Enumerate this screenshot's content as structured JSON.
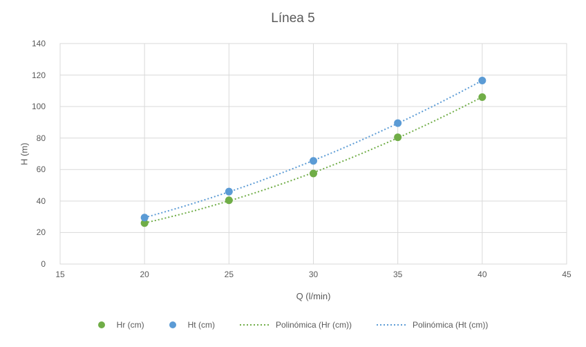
{
  "chart": {
    "title": "Línea 5"
  },
  "chart_data": {
    "type": "scatter",
    "title": "Línea 5",
    "xlabel": "Q (l/min)",
    "ylabel": "H (m)",
    "xlim": [
      15,
      45
    ],
    "ylim": [
      0,
      140
    ],
    "x_ticks": [
      15,
      20,
      25,
      30,
      35,
      40,
      45
    ],
    "y_ticks": [
      0,
      20,
      40,
      60,
      80,
      100,
      120,
      140
    ],
    "grid": true,
    "legend_position": "bottom",
    "x": [
      20,
      25,
      30,
      35,
      40
    ],
    "series": [
      {
        "name": "Hr (cm)",
        "values": [
          26,
          40.5,
          57.5,
          80.5,
          106
        ],
        "color": "#70AD47",
        "marker": "circle",
        "trendline": "polynomial-dotted"
      },
      {
        "name": "Ht (cm)",
        "values": [
          29.5,
          46,
          65.5,
          89.5,
          116.5
        ],
        "color": "#5B9BD5",
        "marker": "circle",
        "trendline": "polynomial-dotted"
      }
    ],
    "trendlines": [
      {
        "name": "Polinómica (Hr (cm))",
        "series": "Hr (cm)",
        "color": "#70AD47",
        "style": "dotted"
      },
      {
        "name": "Polinómica (Ht (cm))",
        "series": "Ht (cm)",
        "color": "#5B9BD5",
        "style": "dotted"
      }
    ]
  },
  "legend": {
    "items": [
      {
        "label": "Hr (cm)",
        "marker": "dot",
        "color": "#70AD47"
      },
      {
        "label": "Ht (cm)",
        "marker": "dot",
        "color": "#5B9BD5"
      },
      {
        "label": "Polinómica (Hr (cm))",
        "marker": "dotted-line",
        "color": "#70AD47"
      },
      {
        "label": "Polinómica (Ht (cm))",
        "marker": "dotted-line",
        "color": "#5B9BD5"
      }
    ]
  },
  "colors": {
    "hr_green": "#70AD47",
    "ht_blue": "#5B9BD5",
    "gridline": "#D9D9D9",
    "axis_text": "#595959",
    "title_text": "#595959"
  }
}
